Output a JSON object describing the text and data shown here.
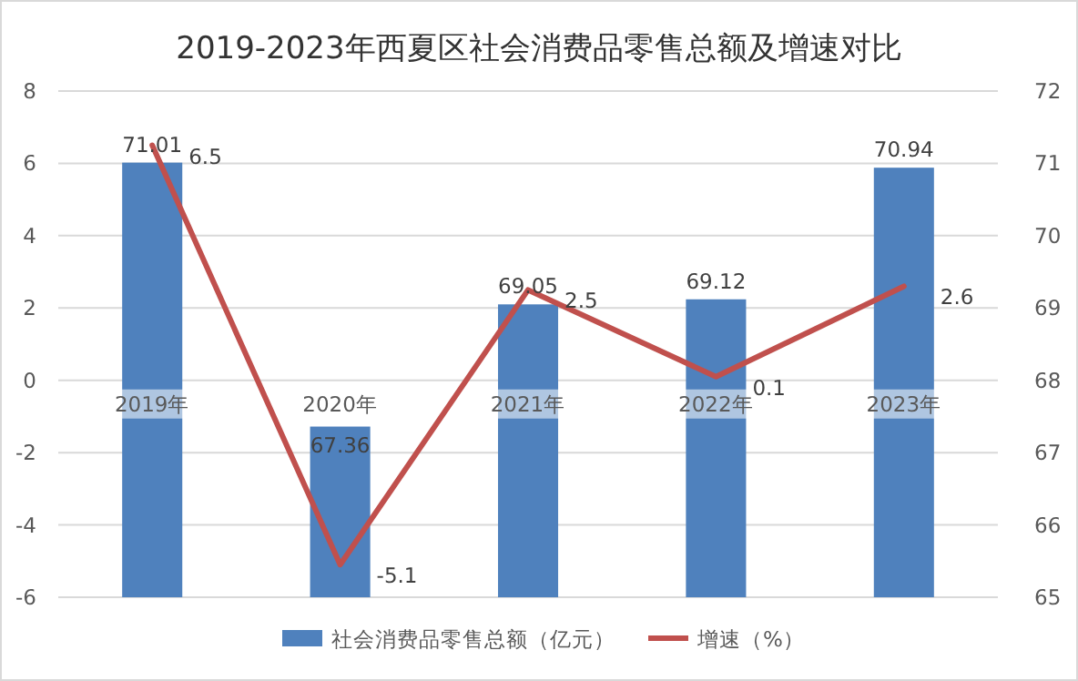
{
  "chart_data": {
    "type": "bar",
    "title": "2019-2023年西夏区社会消费品零售总额及增速对比",
    "categories": [
      "2019年",
      "2020年",
      "2021年",
      "2022年",
      "2023年"
    ],
    "series": [
      {
        "name": "社会消费品零售总额（亿元）",
        "axis": "y2",
        "color": "#4f81bd",
        "values": [
          71.01,
          67.36,
          69.05,
          69.12,
          70.94
        ]
      },
      {
        "name": "增速（%）",
        "type": "line",
        "axis": "y",
        "color": "#c0504d",
        "values": [
          6.5,
          -5.1,
          2.5,
          0.1,
          2.6
        ]
      }
    ],
    "data_labels": true,
    "ylim": [
      -6,
      8
    ],
    "yticks": [
      -6,
      -4,
      -2,
      0,
      2,
      4,
      6,
      8
    ],
    "y2lim": [
      65,
      72
    ],
    "y2ticks": [
      65,
      66,
      67,
      68,
      69,
      70,
      71,
      72
    ],
    "grid": "y",
    "legend": "bottom",
    "marker": "none",
    "line_style": "solid"
  }
}
